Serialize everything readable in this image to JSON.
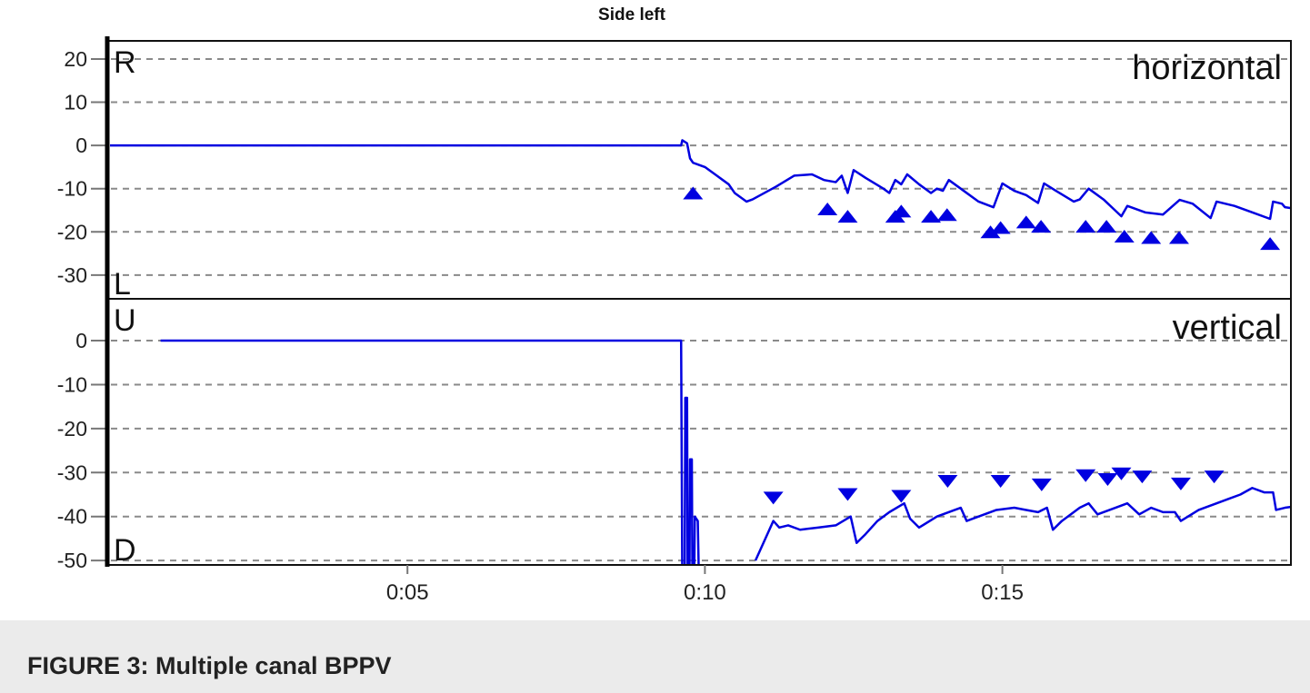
{
  "caption": "FIGURE 3: Multiple canal BPPV",
  "chart_data": [
    {
      "type": "line",
      "title": "Side left",
      "panel_label": "horizontal",
      "top_label": "R",
      "bottom_label": "L",
      "ylim": [
        -35.5,
        24.2
      ],
      "yticks": [
        20,
        10,
        0,
        -10,
        -20,
        -30
      ],
      "ytick_labels": [
        "20",
        "10",
        "0",
        "-10",
        "-20",
        "-30"
      ],
      "xlim": [
        0,
        19.85
      ],
      "xticks": [
        5,
        10,
        15
      ],
      "xtick_labels": [
        "0:05",
        "0:10",
        "0:15"
      ],
      "grid": true,
      "color": "#0000e0",
      "segments": [
        [
          [
            0,
            0
          ],
          [
            9.6,
            0
          ],
          [
            9.62,
            1.2
          ],
          [
            9.7,
            0.5
          ],
          [
            9.75,
            -3
          ],
          [
            9.8,
            -4
          ],
          [
            9.9,
            -4.5
          ],
          [
            10.0,
            -5
          ],
          [
            10.1,
            -6
          ],
          [
            10.2,
            -7
          ],
          [
            10.3,
            -8
          ],
          [
            10.4,
            -9
          ],
          [
            10.5,
            -11
          ],
          [
            10.6,
            -12
          ],
          [
            10.7,
            -13
          ],
          [
            10.8,
            -12.5
          ],
          [
            11.0,
            -11
          ],
          [
            11.2,
            -9.5
          ],
          [
            11.5,
            -7
          ],
          [
            11.8,
            -6.7
          ],
          [
            12.0,
            -8
          ],
          [
            12.2,
            -8.5
          ],
          [
            12.3,
            -7
          ],
          [
            12.4,
            -11
          ],
          [
            12.5,
            -5.7
          ],
          [
            12.7,
            -7.5
          ],
          [
            13.0,
            -10
          ],
          [
            13.1,
            -11
          ],
          [
            13.2,
            -8
          ],
          [
            13.3,
            -9
          ],
          [
            13.4,
            -6.7
          ],
          [
            13.6,
            -9
          ],
          [
            13.8,
            -11
          ],
          [
            13.9,
            -10
          ],
          [
            14.0,
            -10.5
          ],
          [
            14.1,
            -8
          ],
          [
            14.3,
            -10
          ],
          [
            14.6,
            -13
          ],
          [
            14.85,
            -14.3
          ],
          [
            15.0,
            -8.8
          ],
          [
            15.2,
            -10.5
          ],
          [
            15.4,
            -11.5
          ],
          [
            15.6,
            -13.3
          ],
          [
            15.7,
            -8.8
          ],
          [
            15.9,
            -10.5
          ],
          [
            16.2,
            -13
          ],
          [
            16.3,
            -12.5
          ],
          [
            16.45,
            -10
          ],
          [
            16.7,
            -12.5
          ],
          [
            17.0,
            -16.4
          ],
          [
            17.1,
            -14
          ],
          [
            17.4,
            -15.5
          ],
          [
            17.7,
            -16
          ],
          [
            17.98,
            -12.6
          ],
          [
            18.2,
            -13.5
          ],
          [
            18.5,
            -16.8
          ],
          [
            18.6,
            -13
          ],
          [
            18.9,
            -14
          ],
          [
            19.2,
            -15.5
          ],
          [
            19.5,
            -17
          ],
          [
            19.55,
            -13
          ],
          [
            19.7,
            -13.5
          ],
          [
            19.75,
            -14.3
          ],
          [
            19.85,
            -14.5
          ]
        ]
      ],
      "markers": {
        "shape": "triangle-up",
        "points": [
          [
            9.8,
            -11
          ],
          [
            12.06,
            -14.7
          ],
          [
            12.4,
            -16.4
          ],
          [
            13.2,
            -16.4
          ],
          [
            13.3,
            -15.2
          ],
          [
            13.8,
            -16.4
          ],
          [
            14.07,
            -16
          ],
          [
            14.8,
            -20
          ],
          [
            14.97,
            -19
          ],
          [
            15.4,
            -17.7
          ],
          [
            15.65,
            -18.7
          ],
          [
            16.4,
            -18.7
          ],
          [
            16.75,
            -18.7
          ],
          [
            17.05,
            -21
          ],
          [
            17.5,
            -21.3
          ],
          [
            17.97,
            -21.3
          ],
          [
            19.5,
            -22.7
          ]
        ]
      }
    },
    {
      "type": "line",
      "panel_label": "vertical",
      "top_label": "U",
      "bottom_label": "D",
      "ylim": [
        -51,
        9.5
      ],
      "yticks": [
        0,
        -10,
        -20,
        -30,
        -40,
        -50
      ],
      "ytick_labels": [
        "0",
        "-10",
        "-20",
        "-30",
        "-40",
        "-50"
      ],
      "xlim": [
        0,
        19.85
      ],
      "xticks": [
        5,
        10,
        15
      ],
      "xtick_labels": [
        "0:05",
        "0:10",
        "0:15"
      ],
      "grid": true,
      "color": "#0000e0",
      "segments": [
        [
          [
            0.85,
            0
          ],
          [
            9.6,
            0
          ],
          [
            9.62,
            -55
          ],
          [
            9.66,
            -55
          ],
          [
            9.67,
            -13
          ],
          [
            9.7,
            -13
          ],
          [
            9.71,
            -55
          ],
          [
            9.74,
            -55
          ],
          [
            9.75,
            -27
          ],
          [
            9.78,
            -27
          ],
          [
            9.79,
            -55
          ],
          [
            9.82,
            -55
          ],
          [
            9.83,
            -40
          ],
          [
            9.88,
            -41
          ],
          [
            9.9,
            -55
          ]
        ],
        [
          [
            10.85,
            -50
          ],
          [
            10.95,
            -47
          ],
          [
            11.05,
            -44
          ],
          [
            11.15,
            -41
          ],
          [
            11.25,
            -42.5
          ],
          [
            11.4,
            -42
          ],
          [
            11.6,
            -43
          ],
          [
            11.9,
            -42.5
          ],
          [
            12.2,
            -42
          ],
          [
            12.45,
            -40
          ],
          [
            12.55,
            -46
          ],
          [
            12.7,
            -44
          ],
          [
            12.9,
            -41
          ],
          [
            13.1,
            -39
          ],
          [
            13.35,
            -37
          ],
          [
            13.45,
            -40.5
          ],
          [
            13.6,
            -42.5
          ],
          [
            13.9,
            -40
          ],
          [
            14.2,
            -38.5
          ],
          [
            14.3,
            -38
          ],
          [
            14.4,
            -41
          ],
          [
            14.6,
            -40
          ],
          [
            14.9,
            -38.5
          ],
          [
            15.2,
            -38
          ],
          [
            15.4,
            -38.5
          ],
          [
            15.6,
            -39
          ],
          [
            15.75,
            -38
          ],
          [
            15.85,
            -43
          ],
          [
            16.0,
            -41
          ],
          [
            16.3,
            -38
          ],
          [
            16.45,
            -37
          ],
          [
            16.6,
            -39.5
          ],
          [
            16.9,
            -38
          ],
          [
            17.1,
            -37
          ],
          [
            17.3,
            -39.5
          ],
          [
            17.5,
            -38
          ],
          [
            17.7,
            -39
          ],
          [
            17.9,
            -39
          ],
          [
            18.0,
            -41
          ],
          [
            18.3,
            -38.5
          ],
          [
            18.6,
            -37
          ],
          [
            18.8,
            -36
          ],
          [
            19.0,
            -35
          ],
          [
            19.2,
            -33.5
          ],
          [
            19.4,
            -34.5
          ],
          [
            19.55,
            -34.5
          ],
          [
            19.6,
            -38.5
          ],
          [
            19.75,
            -38
          ],
          [
            19.85,
            -37.8
          ]
        ]
      ],
      "markers": {
        "shape": "triangle-down",
        "points": [
          [
            11.15,
            -35.8
          ],
          [
            12.4,
            -35
          ],
          [
            13.3,
            -35.4
          ],
          [
            14.08,
            -32
          ],
          [
            14.97,
            -32
          ],
          [
            15.66,
            -32.8
          ],
          [
            16.4,
            -30.7
          ],
          [
            16.77,
            -31.6
          ],
          [
            17.0,
            -30.3
          ],
          [
            17.35,
            -31
          ],
          [
            18.0,
            -32.6
          ],
          [
            18.56,
            -31
          ]
        ]
      }
    }
  ]
}
